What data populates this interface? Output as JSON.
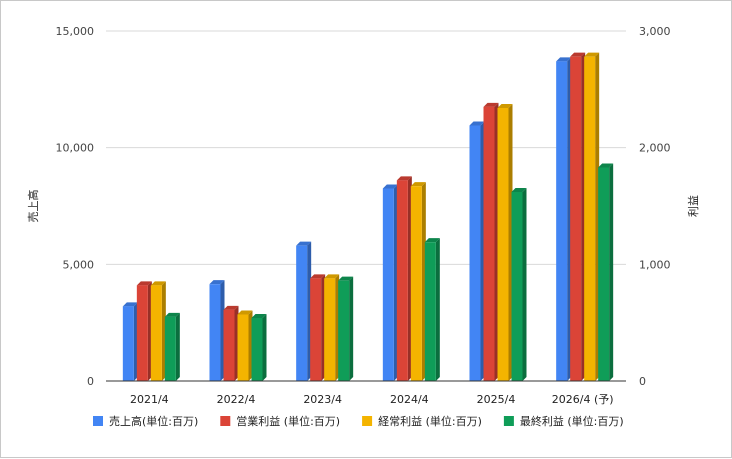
{
  "chart_data": {
    "type": "bar",
    "categories": [
      "2021/4",
      "2022/4",
      "2023/4",
      "2024/4",
      "2025/4",
      "2026/4 (予)"
    ],
    "y_left": {
      "label": "売上高",
      "ylim": [
        0,
        15000
      ],
      "ticks": [
        "0",
        "5,000",
        "10,000",
        "15,000"
      ],
      "tick_values": [
        0,
        5000,
        10000,
        15000
      ]
    },
    "y_right": {
      "label": "利益",
      "ylim": [
        0,
        3000
      ],
      "ticks": [
        "0",
        "1,000",
        "2,000",
        "3,000"
      ],
      "tick_values": [
        0,
        1000,
        2000,
        3000
      ]
    },
    "series": [
      {
        "name": "売上高(単位:百万)",
        "axis": "left",
        "color": "#4285f4",
        "values": [
          3200,
          4150,
          5800,
          8250,
          10950,
          13700
        ]
      },
      {
        "name": "営業利益 (単位:百万)",
        "axis": "right",
        "color": "#db4437",
        "values": [
          820,
          610,
          880,
          1720,
          2350,
          2780
        ]
      },
      {
        "name": "経常利益 (単位:百万)",
        "axis": "right",
        "color": "#f4b400",
        "values": [
          820,
          570,
          880,
          1670,
          2340,
          2780
        ]
      },
      {
        "name": "最終利益 (単位:百万)",
        "axis": "right",
        "color": "#0f9d58",
        "values": [
          550,
          540,
          860,
          1190,
          1620,
          1830
        ]
      }
    ],
    "grid": true,
    "legend": "bottom"
  }
}
